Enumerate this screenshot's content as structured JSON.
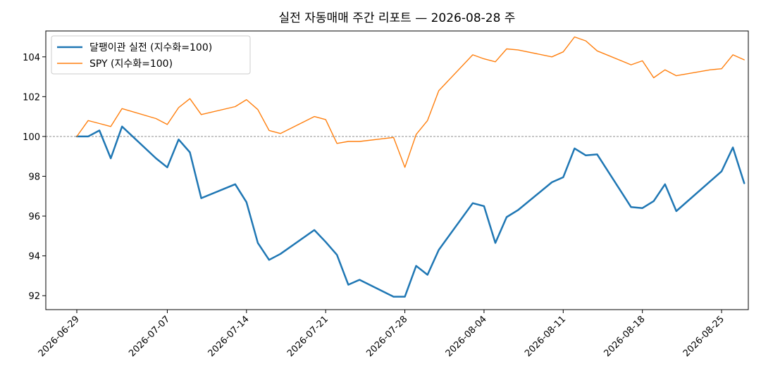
{
  "chart_data": {
    "type": "line",
    "title": "실전 자동매매 주간 리포트 — 2026-08-28 주",
    "xlabel": "",
    "ylabel": "",
    "ylim": [
      91.3,
      105.3
    ],
    "yticks": [
      92,
      94,
      96,
      98,
      100,
      102,
      104
    ],
    "xlim": [
      "2026-06-29",
      "2026-09-03"
    ],
    "xtick_labels": [
      "2026-06-29",
      "2026-07-07",
      "2026-07-14",
      "2026-07-21",
      "2026-07-28",
      "2026-08-04",
      "2026-08-11",
      "2026-08-18",
      "2026-08-25"
    ],
    "reference_line": 100,
    "grid": false,
    "legend_position": "top-left",
    "x": [
      "2026-06-29",
      "2026-06-30",
      "2026-07-01",
      "2026-07-02",
      "2026-07-03",
      "2026-07-06",
      "2026-07-07",
      "2026-07-08",
      "2026-07-09",
      "2026-07-10",
      "2026-07-13",
      "2026-07-14",
      "2026-07-15",
      "2026-07-16",
      "2026-07-17",
      "2026-07-20",
      "2026-07-21",
      "2026-07-22",
      "2026-07-23",
      "2026-07-24",
      "2026-07-27",
      "2026-07-28",
      "2026-07-29",
      "2026-07-30",
      "2026-07-31",
      "2026-08-03",
      "2026-08-04",
      "2026-08-05",
      "2026-08-06",
      "2026-08-07",
      "2026-08-10",
      "2026-08-11",
      "2026-08-12",
      "2026-08-13",
      "2026-08-14",
      "2026-08-17",
      "2026-08-18",
      "2026-08-19",
      "2026-08-20",
      "2026-08-21",
      "2026-08-24",
      "2026-08-25",
      "2026-08-26",
      "2026-08-27",
      "2026-08-28"
    ],
    "series": [
      {
        "name": "달팽이관 실전 (지수화=100)",
        "color": "#1f77b4",
        "values": [
          100.0,
          100.0,
          100.3,
          98.9,
          100.5,
          98.9,
          98.45,
          99.85,
          99.2,
          96.9,
          97.6,
          96.7,
          94.65,
          93.8,
          94.1,
          95.3,
          94.7,
          94.05,
          92.55,
          92.8,
          91.95,
          91.95,
          93.5,
          93.05,
          94.3,
          96.65,
          96.5,
          94.65,
          95.95,
          96.3,
          97.7,
          97.95,
          99.4,
          99.05,
          99.1,
          96.45,
          96.4,
          96.75,
          97.6,
          96.25,
          97.75,
          98.25,
          99.45,
          97.65,
          null
        ]
      },
      {
        "name": "SPY (지수화=100)",
        "color": "#ff7f0e",
        "values": [
          100.0,
          100.8,
          100.65,
          100.5,
          101.4,
          100.9,
          100.6,
          101.45,
          101.9,
          101.1,
          101.5,
          101.85,
          101.35,
          100.3,
          100.15,
          101.0,
          100.85,
          99.65,
          99.75,
          99.75,
          99.95,
          98.45,
          100.1,
          100.8,
          102.3,
          104.1,
          103.9,
          103.75,
          104.4,
          104.35,
          104.0,
          104.25,
          105.0,
          104.8,
          104.3,
          103.6,
          103.8,
          102.95,
          103.35,
          103.05,
          103.35,
          103.4,
          104.1,
          103.85,
          null
        ]
      }
    ]
  }
}
